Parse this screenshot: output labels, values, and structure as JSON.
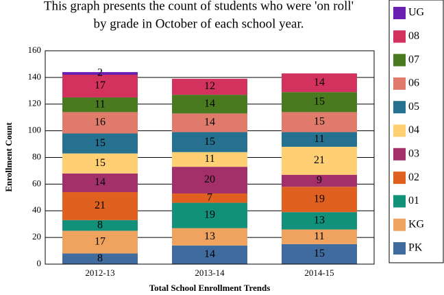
{
  "chart_data": {
    "type": "stacked_bar",
    "title": [
      "This graph presents the count of students who were 'on roll'",
      "by grade in October of each school year."
    ],
    "x_label": "Total School Enrollment Trends",
    "y_label": "Enrollment Count",
    "categories": [
      "2012-13",
      "2013-14",
      "2014-15"
    ],
    "series": [
      {
        "name": "PK",
        "color": "#3f6b9e",
        "values": [
          8,
          14,
          15
        ]
      },
      {
        "name": "KG",
        "color": "#f0a35e",
        "values": [
          17,
          13,
          11
        ]
      },
      {
        "name": "01",
        "color": "#11907a",
        "values": [
          8,
          19,
          13
        ]
      },
      {
        "name": "02",
        "color": "#e0601f",
        "values": [
          21,
          7,
          19
        ]
      },
      {
        "name": "03",
        "color": "#a3306b",
        "values": [
          14,
          20,
          9
        ]
      },
      {
        "name": "04",
        "color": "#ffd073",
        "values": [
          15,
          11,
          21
        ]
      },
      {
        "name": "05",
        "color": "#26718f",
        "values": [
          15,
          15,
          11
        ]
      },
      {
        "name": "06",
        "color": "#e07a6a",
        "values": [
          16,
          14,
          15
        ]
      },
      {
        "name": "07",
        "color": "#4a7a1f",
        "values": [
          11,
          14,
          15
        ]
      },
      {
        "name": "08",
        "color": "#d3315e",
        "values": [
          17,
          12,
          14
        ]
      },
      {
        "name": "UG",
        "color": "#6a1fb0",
        "values": [
          2,
          null,
          null
        ]
      }
    ],
    "ylim": [
      0,
      160
    ],
    "yticks": [
      0,
      20,
      40,
      60,
      80,
      100,
      120,
      140,
      160
    ],
    "grid": true,
    "legend": "right"
  }
}
